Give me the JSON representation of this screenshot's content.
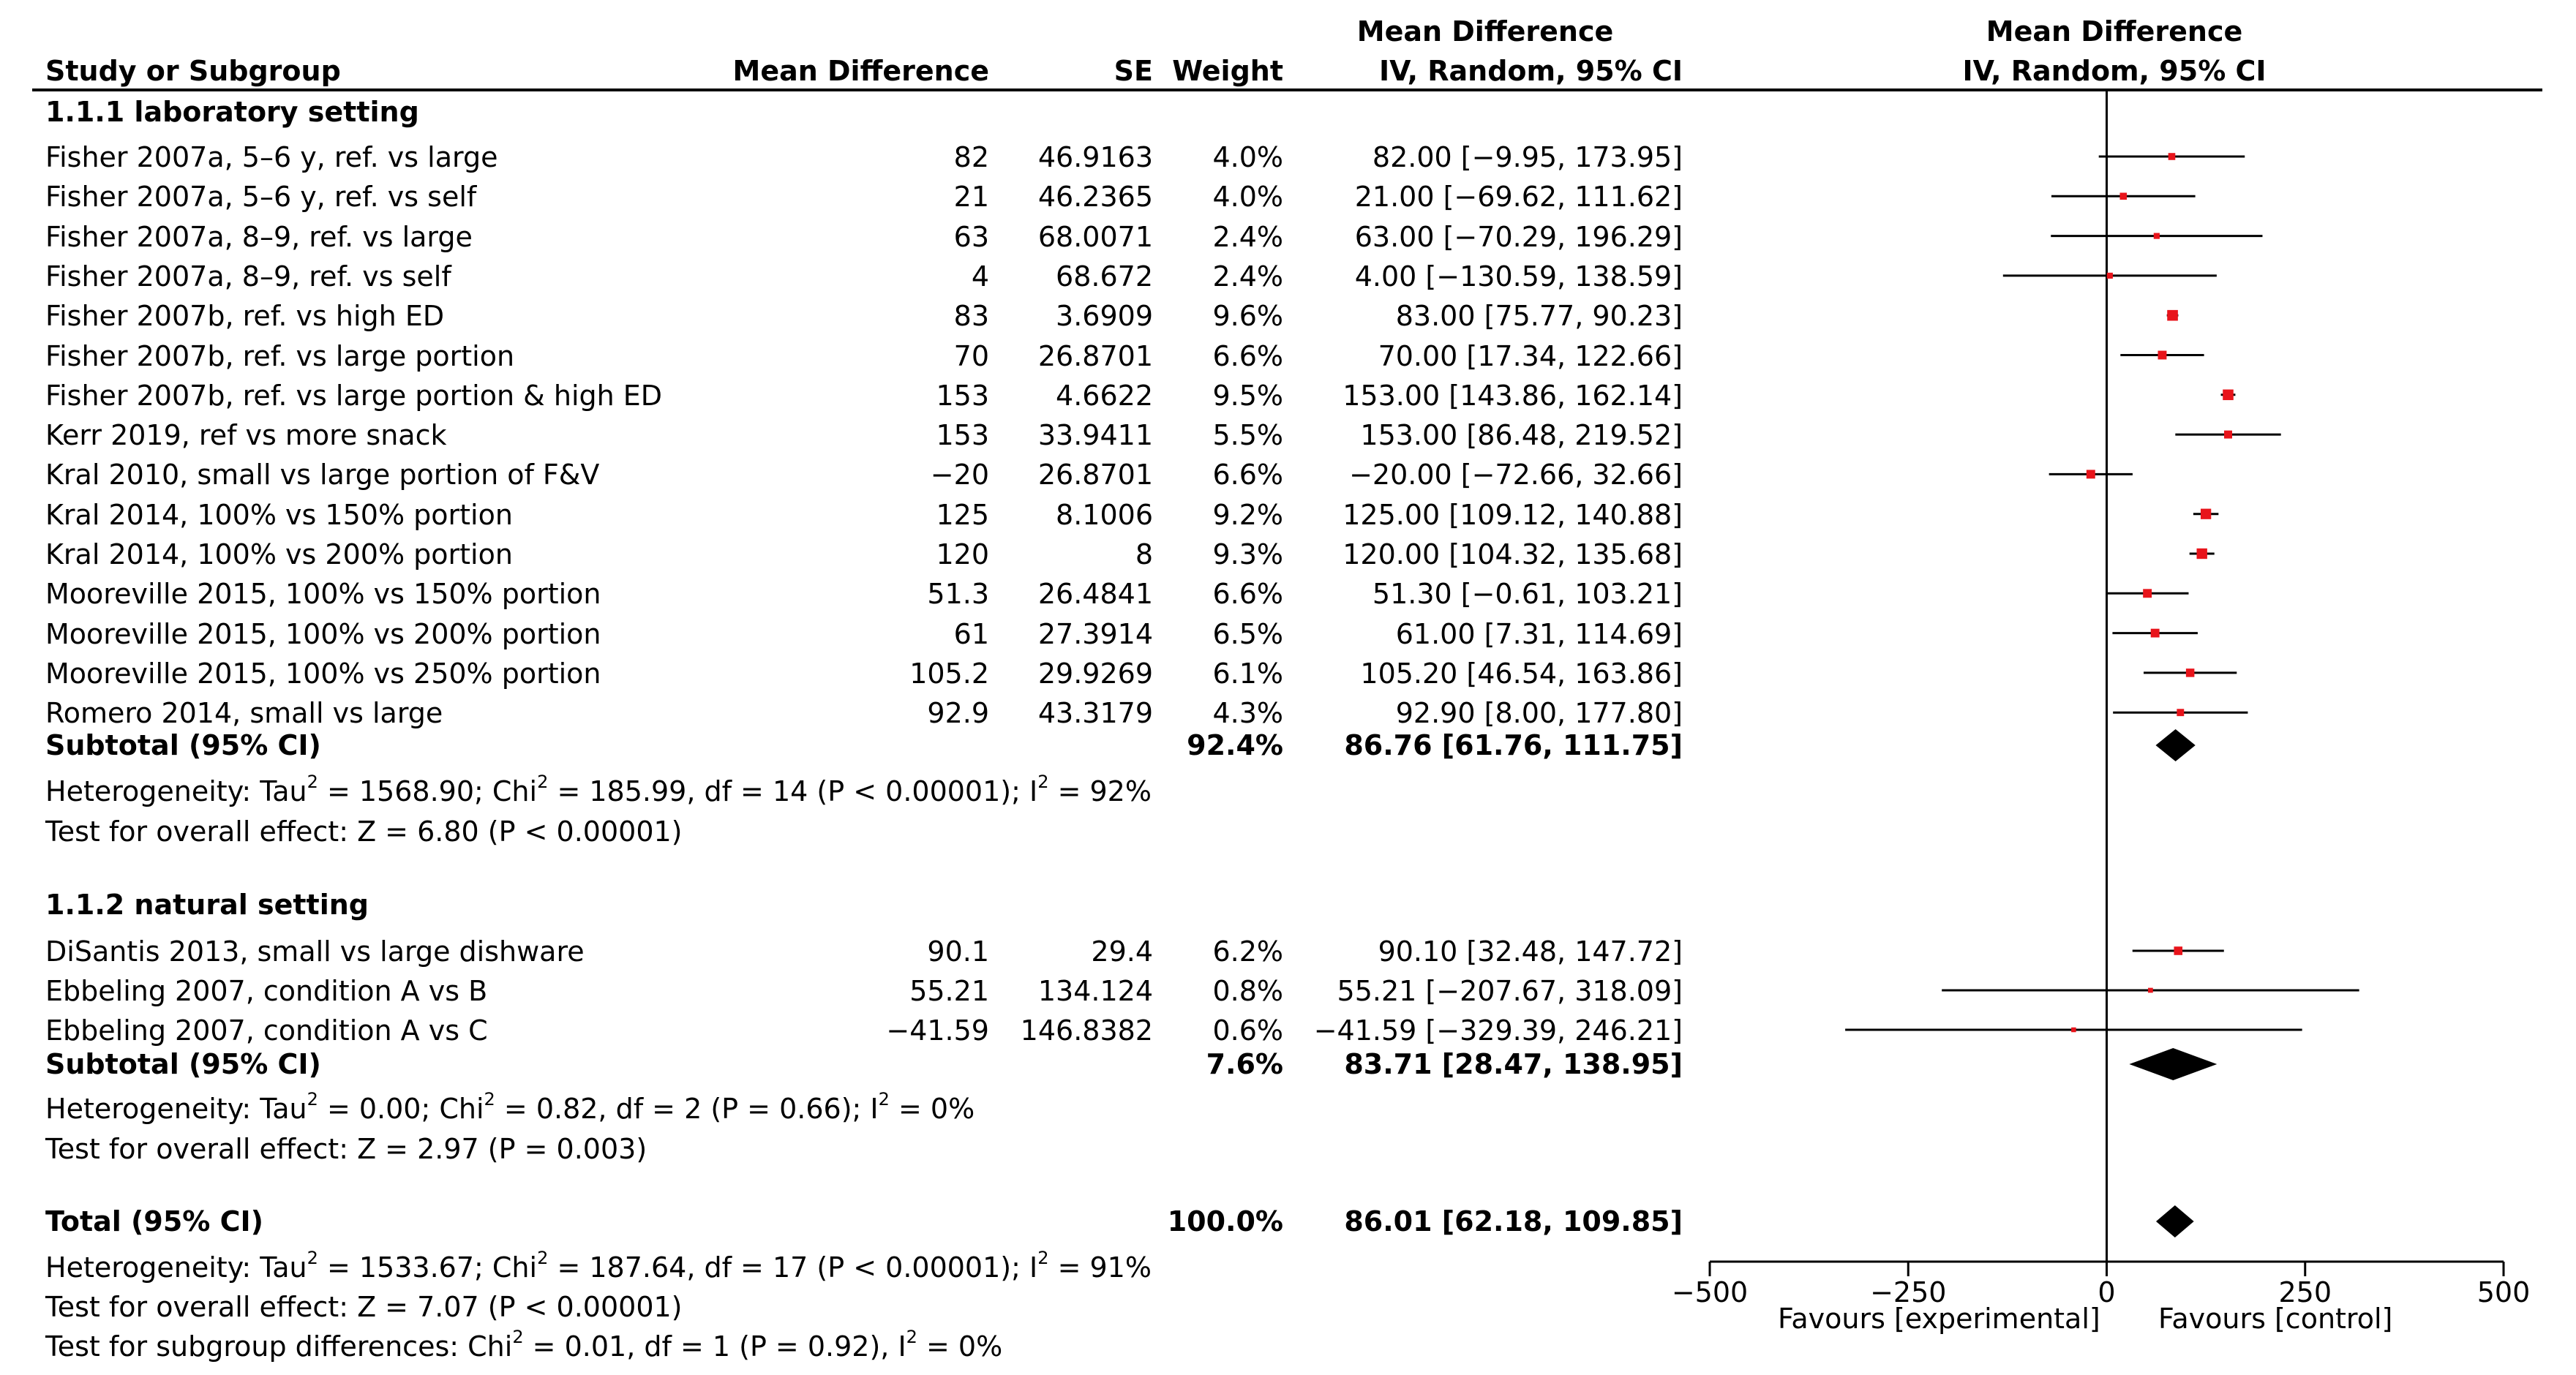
{
  "header": {
    "study_col": "Study or Subgroup",
    "md_col": "Mean Difference",
    "se_col": "SE",
    "weight_col": "Weight",
    "ci_col_top": "Mean Difference",
    "ci_col_bottom": "IV, Random, 95% CI",
    "plot_col_top": "Mean Difference",
    "plot_col_bottom": "IV, Random, 95% CI"
  },
  "groups": [
    {
      "title": "1.1.1 laboratory setting",
      "studies": [
        {
          "name": "Fisher 2007a, 5–6 y, ref. vs large",
          "md": "82",
          "se": "46.9163",
          "weight": "4.0%",
          "ci": "82.00 [−9.95, 173.95]"
        },
        {
          "name": "Fisher 2007a, 5–6 y, ref. vs self",
          "md": "21",
          "se": "46.2365",
          "weight": "4.0%",
          "ci": "21.00 [−69.62, 111.62]"
        },
        {
          "name": "Fisher 2007a, 8–9, ref. vs large",
          "md": "63",
          "se": "68.0071",
          "weight": "2.4%",
          "ci": "63.00 [−70.29, 196.29]"
        },
        {
          "name": "Fisher 2007a, 8–9, ref. vs self",
          "md": "4",
          "se": "68.672",
          "weight": "2.4%",
          "ci": "4.00 [−130.59, 138.59]"
        },
        {
          "name": "Fisher 2007b, ref. vs high ED",
          "md": "83",
          "se": "3.6909",
          "weight": "9.6%",
          "ci": "83.00 [75.77, 90.23]"
        },
        {
          "name": "Fisher 2007b, ref. vs large portion",
          "md": "70",
          "se": "26.8701",
          "weight": "6.6%",
          "ci": "70.00 [17.34, 122.66]"
        },
        {
          "name": "Fisher 2007b, ref. vs large portion & high ED",
          "md": "153",
          "se": "4.6622",
          "weight": "9.5%",
          "ci": "153.00 [143.86, 162.14]"
        },
        {
          "name": "Kerr 2019, ref vs more snack",
          "md": "153",
          "se": "33.9411",
          "weight": "5.5%",
          "ci": "153.00 [86.48, 219.52]"
        },
        {
          "name": "Kral 2010, small vs large portion of F&V",
          "md": "−20",
          "se": "26.8701",
          "weight": "6.6%",
          "ci": "−20.00 [−72.66, 32.66]"
        },
        {
          "name": "Kral 2014, 100% vs 150% portion",
          "md": "125",
          "se": "8.1006",
          "weight": "9.2%",
          "ci": "125.00 [109.12, 140.88]"
        },
        {
          "name": "Kral 2014, 100% vs 200% portion",
          "md": "120",
          "se": "8",
          "weight": "9.3%",
          "ci": "120.00 [104.32, 135.68]"
        },
        {
          "name": "Mooreville 2015, 100% vs 150% portion",
          "md": "51.3",
          "se": "26.4841",
          "weight": "6.6%",
          "ci": "51.30 [−0.61, 103.21]"
        },
        {
          "name": "Mooreville 2015, 100% vs 200% portion",
          "md": "61",
          "se": "27.3914",
          "weight": "6.5%",
          "ci": "61.00 [7.31, 114.69]"
        },
        {
          "name": "Mooreville 2015, 100% vs 250% portion",
          "md": "105.2",
          "se": "29.9269",
          "weight": "6.1%",
          "ci": "105.20 [46.54, 163.86]"
        },
        {
          "name": "Romero 2014, small vs large",
          "md": "92.9",
          "se": "43.3179",
          "weight": "4.3%",
          "ci": "92.90 [8.00, 177.80]"
        }
      ],
      "subtotal": {
        "label": "Subtotal (95% CI)",
        "weight": "92.4%",
        "ci": "86.76 [61.76, 111.75]"
      },
      "heterogeneity_prefix": "Heterogeneity: Tau",
      "heterogeneity_mid": " = 1568.90; Chi",
      "heterogeneity_mid2": " = 185.99, df = 14 (P < 0.00001); I",
      "heterogeneity_end": " = 92%",
      "overall": "Test for overall effect: Z = 6.80 (P < 0.00001)"
    },
    {
      "title": "1.1.2 natural setting",
      "studies": [
        {
          "name": "DiSantis 2013, small vs large dishware",
          "md": "90.1",
          "se": "29.4",
          "weight": "6.2%",
          "ci": "90.10 [32.48, 147.72]"
        },
        {
          "name": "Ebbeling 2007, condition A vs B",
          "md": "55.21",
          "se": "134.124",
          "weight": "0.8%",
          "ci": "55.21 [−207.67, 318.09]"
        },
        {
          "name": "Ebbeling 2007, condition A vs C",
          "md": "−41.59",
          "se": "146.8382",
          "weight": "0.6%",
          "ci": "−41.59 [−329.39, 246.21]"
        }
      ],
      "subtotal": {
        "label": "Subtotal (95% CI)",
        "weight": "7.6%",
        "ci": "83.71 [28.47, 138.95]"
      },
      "heterogeneity_prefix": "Heterogeneity: Tau",
      "heterogeneity_mid": " = 0.00; Chi",
      "heterogeneity_mid2": " = 0.82, df = 2 (P = 0.66); I",
      "heterogeneity_end": " = 0%",
      "overall": "Test for overall effect: Z = 2.97 (P = 0.003)"
    }
  ],
  "total": {
    "label": "Total (95% CI)",
    "weight": "100.0%",
    "ci": "86.01 [62.18, 109.85]",
    "heterogeneity_prefix": "Heterogeneity: Tau",
    "heterogeneity_mid": " = 1533.67; Chi",
    "heterogeneity_mid2": " = 187.64, df = 17 (P < 0.00001); I",
    "heterogeneity_end": " = 91%",
    "overall": "Test for overall effect: Z = 7.07 (P < 0.00001)",
    "subgroup_prefix": "Test for subgroup differences: Chi",
    "subgroup_mid": " = 0.01, df = 1 (P = 0.92), I",
    "subgroup_end": " = 0%"
  },
  "superscript": "2",
  "favours_left": "Favours [experimental]",
  "favours_right": "Favours [control]",
  "colors": {
    "point": "#e8141b",
    "line": "#000000",
    "diamond": "#000000"
  },
  "chart_data": {
    "type": "forest",
    "title": "Mean Difference IV, Random, 95% CI",
    "xlim": [
      -500,
      500
    ],
    "xticks": [
      -500,
      -250,
      0,
      250,
      500
    ],
    "x_tick_labels": [
      "−500",
      "−250",
      "0",
      "250",
      "500"
    ],
    "reference_line": 0,
    "studies": [
      {
        "name": "Fisher 2007a, 5–6 y, ref. vs large",
        "md": 82,
        "lo": -9.95,
        "hi": 173.95,
        "weight": 4.0
      },
      {
        "name": "Fisher 2007a, 5–6 y, ref. vs self",
        "md": 21,
        "lo": -69.62,
        "hi": 111.62,
        "weight": 4.0
      },
      {
        "name": "Fisher 2007a, 8–9, ref. vs large",
        "md": 63,
        "lo": -70.29,
        "hi": 196.29,
        "weight": 2.4
      },
      {
        "name": "Fisher 2007a, 8–9, ref. vs self",
        "md": 4,
        "lo": -130.59,
        "hi": 138.59,
        "weight": 2.4
      },
      {
        "name": "Fisher 2007b, ref. vs high ED",
        "md": 83,
        "lo": 75.77,
        "hi": 90.23,
        "weight": 9.6
      },
      {
        "name": "Fisher 2007b, ref. vs large portion",
        "md": 70,
        "lo": 17.34,
        "hi": 122.66,
        "weight": 6.6
      },
      {
        "name": "Fisher 2007b, ref. vs large portion & high ED",
        "md": 153,
        "lo": 143.86,
        "hi": 162.14,
        "weight": 9.5
      },
      {
        "name": "Kerr 2019, ref vs more snack",
        "md": 153,
        "lo": 86.48,
        "hi": 219.52,
        "weight": 5.5
      },
      {
        "name": "Kral 2010, small vs large portion of F&V",
        "md": -20,
        "lo": -72.66,
        "hi": 32.66,
        "weight": 6.6
      },
      {
        "name": "Kral 2014, 100% vs 150% portion",
        "md": 125,
        "lo": 109.12,
        "hi": 140.88,
        "weight": 9.2
      },
      {
        "name": "Kral 2014, 100% vs 200% portion",
        "md": 120,
        "lo": 104.32,
        "hi": 135.68,
        "weight": 9.3
      },
      {
        "name": "Mooreville 2015, 100% vs 150% portion",
        "md": 51.3,
        "lo": -0.61,
        "hi": 103.21,
        "weight": 6.6
      },
      {
        "name": "Mooreville 2015, 100% vs 200% portion",
        "md": 61,
        "lo": 7.31,
        "hi": 114.69,
        "weight": 6.5
      },
      {
        "name": "Mooreville 2015, 100% vs 250% portion",
        "md": 105.2,
        "lo": 46.54,
        "hi": 163.86,
        "weight": 6.1
      },
      {
        "name": "Romero 2014, small vs large",
        "md": 92.9,
        "lo": 8.0,
        "hi": 177.8,
        "weight": 4.3
      },
      {
        "name": "Subtotal 1.1.1",
        "md": 86.76,
        "lo": 61.76,
        "hi": 111.75,
        "diamond": true
      },
      {
        "name": "DiSantis 2013, small vs large dishware",
        "md": 90.1,
        "lo": 32.48,
        "hi": 147.72,
        "weight": 6.2
      },
      {
        "name": "Ebbeling 2007, condition A vs B",
        "md": 55.21,
        "lo": -207.67,
        "hi": 318.09,
        "weight": 0.8
      },
      {
        "name": "Ebbeling 2007, condition A vs C",
        "md": -41.59,
        "lo": -329.39,
        "hi": 246.21,
        "weight": 0.6
      },
      {
        "name": "Subtotal 1.1.2",
        "md": 83.71,
        "lo": 28.47,
        "hi": 138.95,
        "diamond": true
      },
      {
        "name": "Total",
        "md": 86.01,
        "lo": 62.18,
        "hi": 109.85,
        "diamond": true
      }
    ]
  }
}
